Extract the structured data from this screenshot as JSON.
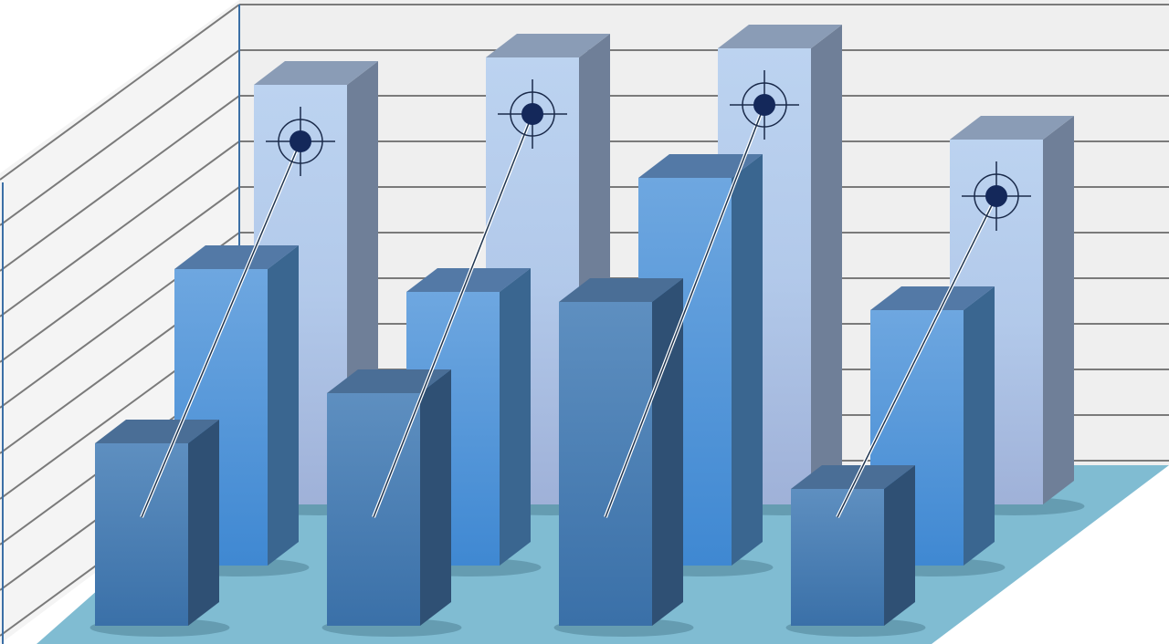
{
  "chart_data": {
    "type": "bar",
    "style": "3d-grouped-rows",
    "title": "",
    "xlabel": "",
    "ylabel": "",
    "grid": true,
    "legend": "none",
    "categories": [
      "1",
      "2",
      "3",
      "4"
    ],
    "category_labels_printed": false,
    "ylim": [
      0,
      10
    ],
    "series": [
      {
        "row": "back",
        "values": [
          9.2,
          9.8,
          10.0,
          8.0
        ],
        "color": "#b4cbec",
        "marker": "crosshair-target"
      },
      {
        "row": "middle",
        "values": [
          6.5,
          6.0,
          8.5,
          5.6
        ],
        "color": "#5d9ddd"
      },
      {
        "row": "front",
        "values": [
          4.0,
          5.1,
          7.1,
          3.0
        ],
        "color": "#4a7fb8"
      }
    ],
    "colors": {
      "wall": "#efefef",
      "gridline": "#7a7a7a",
      "floor": "#80bcd2",
      "axis": "#3b6fa6"
    }
  }
}
